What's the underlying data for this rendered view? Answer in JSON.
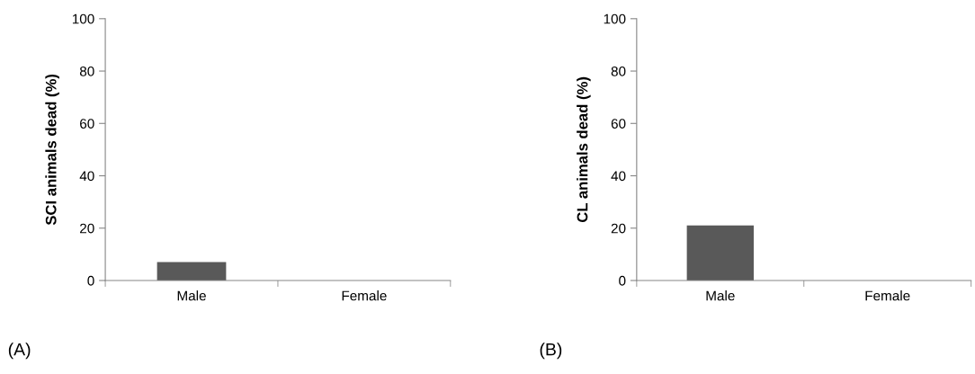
{
  "chart_data": [
    {
      "type": "bar",
      "categories": [
        "Male",
        "Female"
      ],
      "values": [
        7,
        0
      ],
      "color": "#595959",
      "ylabel": "SCI animals dead (%)",
      "ylim": [
        0,
        100
      ],
      "yticks": [
        0,
        20,
        40,
        60,
        80,
        100
      ],
      "grid": false,
      "legend": false,
      "annotations": [
        "(A)"
      ]
    },
    {
      "type": "bar",
      "categories": [
        "Male",
        "Female"
      ],
      "values": [
        21,
        0
      ],
      "color": "#595959",
      "ylabel": "CL animals dead (%)",
      "ylim": [
        0,
        100
      ],
      "yticks": [
        0,
        20,
        40,
        60,
        80,
        100
      ],
      "grid": false,
      "legend": false,
      "annotations": [
        "(B)"
      ]
    }
  ]
}
